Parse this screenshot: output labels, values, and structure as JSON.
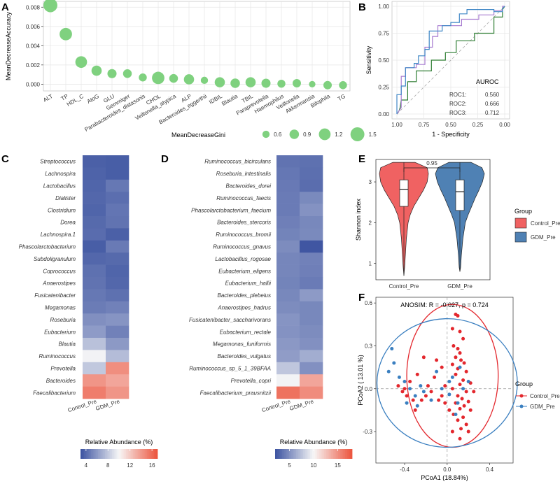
{
  "chart_data": [
    {
      "panel": "A",
      "type": "scatter",
      "ylabel": "MeanDecreaseAccuracy",
      "yticks": [
        "0.000",
        "0.002",
        "0.004",
        "0.006",
        "0.008"
      ],
      "ylim": [
        -0.0007,
        0.0086
      ],
      "categories": [
        "ALT",
        "TP",
        "HDL_C",
        "AtoG",
        "GLU",
        "Gemmiger",
        "Parabacteroides_distasonis",
        "CHOL",
        "Veillonella_atypica",
        "ALP",
        "Bacteroides_eggerthii",
        "IDBIL",
        "Blautia",
        "TBIL",
        "Paraprevotella",
        "Haemophilus",
        "Veillonella",
        "Akkermansia",
        "Bilophila",
        "TG"
      ],
      "values": [
        0.0082,
        0.0052,
        0.0023,
        0.0014,
        0.0011,
        0.0011,
        0.0007,
        0.00065,
        0.0006,
        0.0005,
        0.0004,
        0.0002,
        0.0001,
        0.0002,
        0.0001,
        5e-05,
        0.0001,
        0.0,
        -0.0001,
        -0.0001
      ],
      "size_values": [
        1.5,
        1.3,
        1.2,
        1.0,
        0.85,
        0.8,
        0.7,
        1.3,
        0.8,
        1.0,
        0.6,
        1.0,
        0.9,
        1.0,
        0.85,
        0.7,
        0.75,
        0.5,
        0.75,
        0.7
      ],
      "size_legend": {
        "title": "MeanDecreaseGini",
        "values": [
          0.6,
          0.9,
          1.2,
          1.5
        ]
      },
      "color": "#7fd17f"
    },
    {
      "panel": "B",
      "type": "line",
      "xlabel": "1 - Specificity",
      "ylabel": "Sensitivity",
      "xticks": [
        "1.00",
        "0.75",
        "0.50",
        "0.25",
        "0.00"
      ],
      "yticks": [
        "0.00",
        "0.25",
        "0.50",
        "0.75",
        "1.00"
      ],
      "legend_title": "AUROC",
      "series": [
        {
          "name": "ROC1:",
          "auc": "0.560",
          "color": "#2e7d32",
          "points": [
            [
              1.0,
              0.0
            ],
            [
              0.98,
              0.03
            ],
            [
              0.97,
              0.06
            ],
            [
              0.96,
              0.13
            ],
            [
              0.9,
              0.13
            ],
            [
              0.9,
              0.3
            ],
            [
              0.82,
              0.3
            ],
            [
              0.82,
              0.4
            ],
            [
              0.68,
              0.4
            ],
            [
              0.68,
              0.5
            ],
            [
              0.55,
              0.5
            ],
            [
              0.55,
              0.57
            ],
            [
              0.45,
              0.57
            ],
            [
              0.45,
              0.68
            ],
            [
              0.28,
              0.68
            ],
            [
              0.28,
              0.75
            ],
            [
              0.1,
              0.75
            ],
            [
              0.1,
              0.9
            ],
            [
              0.02,
              0.9
            ],
            [
              0.02,
              0.97
            ],
            [
              0.0,
              1.0
            ]
          ]
        },
        {
          "name": "ROC2:",
          "auc": "0.666",
          "color": "#a77bd0",
          "points": [
            [
              1.0,
              0.0
            ],
            [
              0.98,
              0.03
            ],
            [
              0.96,
              0.06
            ],
            [
              0.96,
              0.35
            ],
            [
              0.92,
              0.35
            ],
            [
              0.92,
              0.43
            ],
            [
              0.82,
              0.43
            ],
            [
              0.82,
              0.46
            ],
            [
              0.74,
              0.46
            ],
            [
              0.74,
              0.62
            ],
            [
              0.67,
              0.62
            ],
            [
              0.67,
              0.72
            ],
            [
              0.62,
              0.72
            ],
            [
              0.62,
              0.82
            ],
            [
              0.4,
              0.82
            ],
            [
              0.4,
              0.88
            ],
            [
              0.24,
              0.88
            ],
            [
              0.24,
              0.92
            ],
            [
              0.1,
              0.92
            ],
            [
              0.1,
              0.96
            ],
            [
              0.02,
              0.96
            ],
            [
              0.02,
              1.0
            ],
            [
              0.0,
              1.0
            ]
          ]
        },
        {
          "name": "ROC3:",
          "auc": "0.712",
          "color": "#3f87c6",
          "points": [
            [
              1.0,
              0.0
            ],
            [
              1.0,
              0.18
            ],
            [
              0.96,
              0.18
            ],
            [
              0.96,
              0.26
            ],
            [
              0.92,
              0.26
            ],
            [
              0.92,
              0.43
            ],
            [
              0.84,
              0.43
            ],
            [
              0.84,
              0.47
            ],
            [
              0.8,
              0.47
            ],
            [
              0.8,
              0.54
            ],
            [
              0.74,
              0.54
            ],
            [
              0.74,
              0.6
            ],
            [
              0.7,
              0.6
            ],
            [
              0.7,
              0.77
            ],
            [
              0.58,
              0.77
            ],
            [
              0.58,
              0.82
            ],
            [
              0.5,
              0.82
            ],
            [
              0.5,
              0.85
            ],
            [
              0.42,
              0.85
            ],
            [
              0.42,
              0.93
            ],
            [
              0.35,
              0.93
            ],
            [
              0.35,
              0.97
            ],
            [
              0.1,
              0.97
            ],
            [
              0.1,
              0.95
            ],
            [
              0.02,
              0.95
            ],
            [
              0.02,
              0.98
            ],
            [
              0.0,
              1.0
            ]
          ]
        }
      ]
    },
    {
      "panel": "C",
      "type": "heatmap",
      "columns": [
        "Control_Pre",
        "GDM_Pre"
      ],
      "rows": [
        "Streptococcus",
        "Lachnospira",
        "Lactobacillus",
        "Dialister",
        "Clostridium",
        "Dorea",
        "Lachnospira.1",
        "Phascolarctobacterium",
        "Subdoligranulum",
        "Coprococcus",
        "Anaerostipes",
        "Fusicatenibacter",
        "Megamonas",
        "Roseburia",
        "Eubacterium",
        "Blautia",
        "Ruminococcus",
        "Prevotella",
        "Bacteroides",
        "Faecalibacterium"
      ],
      "values": [
        [
          3.6,
          3.5
        ],
        [
          3.7,
          3.5
        ],
        [
          3.8,
          4.6
        ],
        [
          3.9,
          4.2
        ],
        [
          3.8,
          4.5
        ],
        [
          4.0,
          4.4
        ],
        [
          4.1,
          3.6
        ],
        [
          3.5,
          4.7
        ],
        [
          3.9,
          4.0
        ],
        [
          4.3,
          3.8
        ],
        [
          4.4,
          3.9
        ],
        [
          4.6,
          4.3
        ],
        [
          4.8,
          5.0
        ],
        [
          5.6,
          5.8
        ],
        [
          6.1,
          5.0
        ],
        [
          7.7,
          6.0
        ],
        [
          9.8,
          7.5
        ],
        [
          8.0,
          14.5
        ],
        [
          14.2,
          13.5
        ],
        [
          15.2,
          14.2
        ]
      ],
      "legend_title": "Relative Abundance (%)",
      "legend_ticks": [
        4,
        8,
        12,
        16
      ],
      "range": [
        3,
        17
      ]
    },
    {
      "panel": "D",
      "type": "heatmap",
      "columns": [
        "Control_Pre",
        "GDM_Pre"
      ],
      "rows": [
        "Ruminococcus_bicirculans",
        "Roseburia_intestinalis",
        "Bacteroides_dorei",
        "Ruminococcus_faecis",
        "Phascolarctobacterium_faecium",
        "Bacteroides_stercoris",
        "Ruminococcus_bromii",
        "Ruminococcus_gnavus",
        "Lactobacillus_rogosae",
        "Eubacterium_eligens",
        "Eubacterium_hallii",
        "Bacteroides_plebeius",
        "Anaerostipes_hadrus",
        "Fusicatenibacter_saccharivorans",
        "Eubacterium_rectale",
        "Megamonas_funiformis",
        "Bacteroides_vulgatus",
        "Ruminococcus_sp_5_1_39BFAA",
        "Prevotella_copri",
        "Faecalibacterium_prausnitzii"
      ],
      "values": [
        [
          3.6,
          3.5
        ],
        [
          3.8,
          3.4
        ],
        [
          3.9,
          3.3
        ],
        [
          4.0,
          4.7
        ],
        [
          4.0,
          5.1
        ],
        [
          4.2,
          4.6
        ],
        [
          4.4,
          4.7
        ],
        [
          4.8,
          2.2
        ],
        [
          4.5,
          4.3
        ],
        [
          4.5,
          4.2
        ],
        [
          4.4,
          4.0
        ],
        [
          4.6,
          5.5
        ],
        [
          4.8,
          4.6
        ],
        [
          5.2,
          4.6
        ],
        [
          5.1,
          4.8
        ],
        [
          5.4,
          5.0
        ],
        [
          5.6,
          6.4
        ],
        [
          7.6,
          5.0
        ],
        [
          9.8,
          14.0
        ],
        [
          16.5,
          15.2
        ]
      ],
      "legend_title": "Relative Abundance (%)",
      "legend_ticks": [
        5,
        10,
        15
      ],
      "range": [
        2,
        18
      ]
    },
    {
      "panel": "E",
      "type": "violin",
      "ylabel": "Shannon index",
      "yticks": [
        "1",
        "2",
        "3"
      ],
      "ylim": [
        0.6,
        3.55
      ],
      "categories": [
        "Control_Pre",
        "GDM_Pre"
      ],
      "colors": [
        "#f06262",
        "#4f81b4"
      ],
      "box": [
        {
          "min": 0.7,
          "q1": 2.4,
          "median": 2.82,
          "q3": 3.05,
          "max": 3.48
        },
        {
          "min": 0.8,
          "q1": 2.3,
          "median": 2.76,
          "q3": 3.05,
          "max": 3.48
        }
      ],
      "significance": "0.95",
      "legend_title": "Group",
      "legend": [
        "Control_Pre",
        "GDM_Pre"
      ]
    },
    {
      "panel": "F",
      "type": "scatter",
      "title": "ANOSIM: R = -0.027, p = 0.724",
      "xlabel": "PCoA1 (18.84%)",
      "ylabel": "PCoA2 ( 13.01 %)",
      "xticks": [
        "-0.4",
        "0.0",
        "0.4"
      ],
      "yticks": [
        "-0.3",
        "0.0",
        "0.3",
        "0.6"
      ],
      "xlim": [
        -0.67,
        0.62
      ],
      "ylim": [
        -0.52,
        0.64
      ],
      "legend_title": "Group",
      "legend": [
        "Control_Pre",
        "GDM_Pre"
      ],
      "colors": [
        "#e3272d",
        "#3a7fc0"
      ],
      "ellipses": [
        {
          "cx": 0.05,
          "cy": 0.09,
          "rx": 0.43,
          "ry": 0.5
        },
        {
          "cx": 0.0,
          "cy": 0.04,
          "rx": 0.66,
          "ry": 0.45
        }
      ],
      "control_points": [
        [
          0.08,
          0.52
        ],
        [
          0.1,
          0.51
        ],
        [
          0.05,
          0.42
        ],
        [
          0.12,
          0.4
        ],
        [
          0.15,
          0.35
        ],
        [
          0.06,
          0.3
        ],
        [
          0.1,
          0.28
        ],
        [
          0.12,
          0.25
        ],
        [
          0.08,
          0.22
        ],
        [
          0.13,
          0.2
        ],
        [
          0.16,
          0.18
        ],
        [
          0.05,
          0.17
        ],
        [
          0.1,
          0.14
        ],
        [
          0.18,
          0.12
        ],
        [
          0.08,
          0.1
        ],
        [
          0.15,
          0.06
        ],
        [
          0.12,
          0.03
        ],
        [
          0.05,
          0.0
        ],
        [
          0.18,
          -0.02
        ],
        [
          0.1,
          -0.05
        ],
        [
          0.14,
          -0.07
        ],
        [
          0.2,
          -0.09
        ],
        [
          0.08,
          -0.1
        ],
        [
          0.16,
          -0.12
        ],
        [
          0.12,
          -0.14
        ],
        [
          0.22,
          -0.15
        ],
        [
          0.06,
          -0.18
        ],
        [
          0.15,
          -0.2
        ],
        [
          0.1,
          -0.22
        ],
        [
          0.18,
          -0.25
        ],
        [
          0.13,
          -0.28
        ],
        [
          0.2,
          -0.3
        ],
        [
          0.05,
          -0.3
        ],
        [
          0.12,
          -0.35
        ],
        [
          -0.02,
          -0.1
        ],
        [
          -0.05,
          0.15
        ],
        [
          -0.1,
          0.2
        ],
        [
          -0.22,
          0.22
        ],
        [
          -0.28,
          0.1
        ],
        [
          -0.35,
          0.05
        ],
        [
          -0.4,
          0.0
        ],
        [
          -0.42,
          -0.02
        ],
        [
          -0.38,
          -0.05
        ],
        [
          -0.32,
          -0.08
        ],
        [
          -0.3,
          -0.15
        ],
        [
          -0.2,
          -0.05
        ],
        [
          -0.15,
          -0.02
        ],
        [
          -0.05,
          -0.05
        ],
        [
          -0.02,
          0.02
        ],
        [
          -0.46,
          0.02
        ],
        [
          -0.24,
          -0.08
        ],
        [
          -0.08,
          -0.08
        ],
        [
          0.02,
          -0.15
        ],
        [
          0.22,
          0.04
        ],
        [
          0.25,
          -0.02
        ],
        [
          -0.12,
          0.08
        ],
        [
          -0.18,
          0.02
        ]
      ],
      "gdm_points": [
        [
          -0.52,
          0.28
        ],
        [
          -0.5,
          0.18
        ],
        [
          -0.55,
          0.12
        ],
        [
          -0.45,
          0.08
        ],
        [
          -0.4,
          0.05
        ],
        [
          -0.35,
          0.0
        ],
        [
          -0.3,
          -0.05
        ],
        [
          -0.25,
          0.02
        ],
        [
          -0.22,
          -0.02
        ],
        [
          -0.28,
          -0.12
        ],
        [
          -0.38,
          -0.1
        ],
        [
          -0.1,
          0.12
        ],
        [
          -0.05,
          0.0
        ],
        [
          0.02,
          -0.04
        ],
        [
          0.05,
          0.08
        ],
        [
          0.12,
          0.15
        ],
        [
          0.15,
          0.0
        ],
        [
          0.2,
          0.05
        ],
        [
          0.08,
          -0.18
        ],
        [
          0.02,
          0.05
        ],
        [
          0.1,
          -0.1
        ],
        [
          -0.15,
          -0.08
        ]
      ]
    }
  ]
}
